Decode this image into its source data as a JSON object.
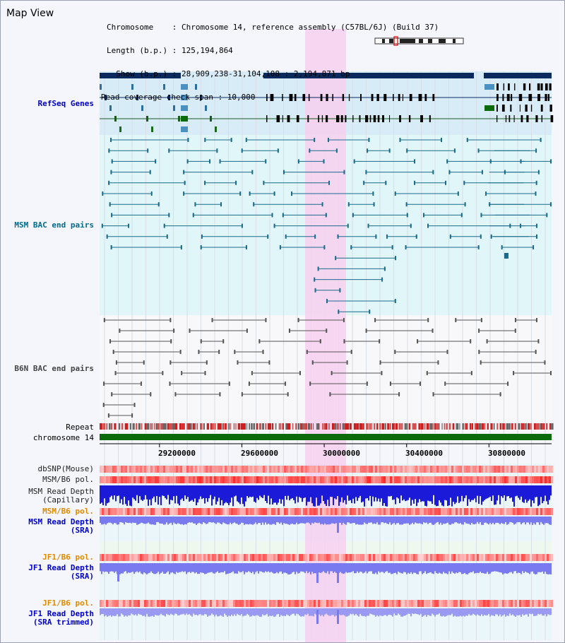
{
  "header": {
    "title": "Map View",
    "chrom_line": "Chromosome    : Chromosome 14, reference assembly (C57BL/6J) (Build 37)",
    "length_line": "Length (b.p.) : 125,194,864",
    "show_line": "  Show (b.p.) : 28,909,238-31,104,108 : 2,194,871 bp",
    "coverage_line": "Read coverage check span : 10,000"
  },
  "tracks": {
    "refseq": {
      "label": "RefSeq Genes",
      "color": "#0000cc"
    },
    "msm_bac": {
      "label": "MSM BAC end pairs",
      "color": "#006b8f"
    },
    "b6n_bac": {
      "label": "B6N BAC end pairs",
      "color": "#444444"
    },
    "repeat": {
      "label": "Repeat",
      "color": "#000000"
    },
    "chrom": {
      "label": "chromosome 14",
      "color": "#000000"
    },
    "dbsnp": {
      "label": "dbSNP(Mouse)",
      "color": "#222222"
    },
    "msm_pol1": {
      "label": "MSM/B6 pol.",
      "color": "#222222"
    },
    "msm_depth_cap": {
      "line1": "MSM Read Depth",
      "line2": "(Capillary)",
      "color": "#222222"
    },
    "msm_pol2": {
      "label": "MSM/B6 pol.",
      "color": "#e08a00"
    },
    "msm_depth_sra": {
      "line1": "MSM Read Depth",
      "line2": "(SRA)",
      "color": "#0000cc"
    },
    "jf1_pol1": {
      "label": "JF1/B6 pol.",
      "color": "#e08a00"
    },
    "jf1_depth_sra": {
      "line1": "JF1 Read Depth",
      "line2": "(SRA)",
      "color": "#0000cc"
    },
    "jf1_pol2": {
      "label": "JF1/B6 pol.",
      "color": "#e08a00"
    },
    "jf1_depth_trim": {
      "line1": "JF1 Read Depth",
      "line2": "(SRA trimmed)",
      "color": "#0000cc"
    }
  },
  "axis": {
    "ticks": [
      "29200000",
      "29600000",
      "30000000",
      "30400000",
      "30800000"
    ],
    "tick_values": [
      29200000,
      29600000,
      30000000,
      30400000,
      30800000
    ],
    "range": [
      28909238,
      31104108
    ]
  },
  "colors": {
    "highlight": "#f7d0f0",
    "refseq_bg": "#d8ecf8",
    "msm_bg": "#e0f6f8",
    "gene_dark": "#0a2a5e",
    "chrom_bar": "#0b6b0b",
    "depth_blue": "#1a1ad8",
    "depth_light": "#7a7af0"
  }
}
